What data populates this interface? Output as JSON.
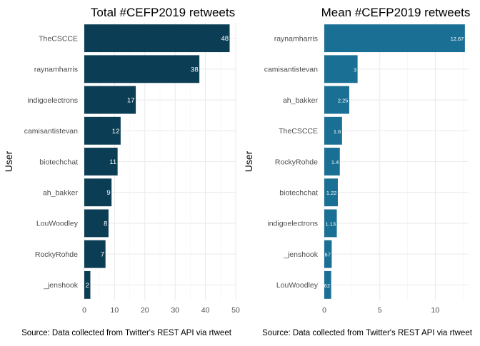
{
  "chart_data": [
    {
      "type": "bar",
      "orientation": "horizontal",
      "title": "Total #CEFP2019 retweets",
      "ylabel": "User",
      "xlabel": "",
      "caption": "Source: Data collected from Twitter's REST API via rtweet",
      "categories": [
        "TheCSCCE",
        "raynamharris",
        "indigoelectrons",
        "camisantistevan",
        "biotechchat",
        "ah_bakker",
        "LouWoodley",
        "RockyRohde",
        "_jenshook"
      ],
      "values": [
        48,
        38,
        17,
        12,
        11,
        9,
        8,
        7,
        2
      ],
      "data_labels": [
        "48",
        "38",
        "17",
        "12",
        "11",
        "9",
        "8",
        "7",
        "2"
      ],
      "xlim": [
        0,
        50
      ],
      "xticks": [
        0,
        10,
        20,
        30,
        40,
        50
      ],
      "bar_color": "#0b3d54",
      "grid": true
    },
    {
      "type": "bar",
      "orientation": "horizontal",
      "title": "Mean #CEFP2019 retweets",
      "ylabel": "User",
      "xlabel": "",
      "caption": "Source: Data collected from Twitter's REST API via rtweet",
      "categories": [
        "raynamharris",
        "camisantistevan",
        "ah_bakker",
        "TheCSCCE",
        "RockyRohde",
        "biotechchat",
        "indigoelectrons",
        "_jenshook",
        "LouWoodley"
      ],
      "values": [
        12.67,
        3,
        2.25,
        1.6,
        1.4,
        1.22,
        1.13,
        0.67,
        0.62
      ],
      "data_labels": [
        "12.67",
        "3",
        "2.25",
        "1.6",
        "1.4",
        "1.22",
        "1.13",
        ".67",
        ".62"
      ],
      "xlim": [
        0,
        13
      ],
      "xticks": [
        0,
        5,
        10
      ],
      "bar_color": "#1a7094",
      "grid": true
    }
  ]
}
